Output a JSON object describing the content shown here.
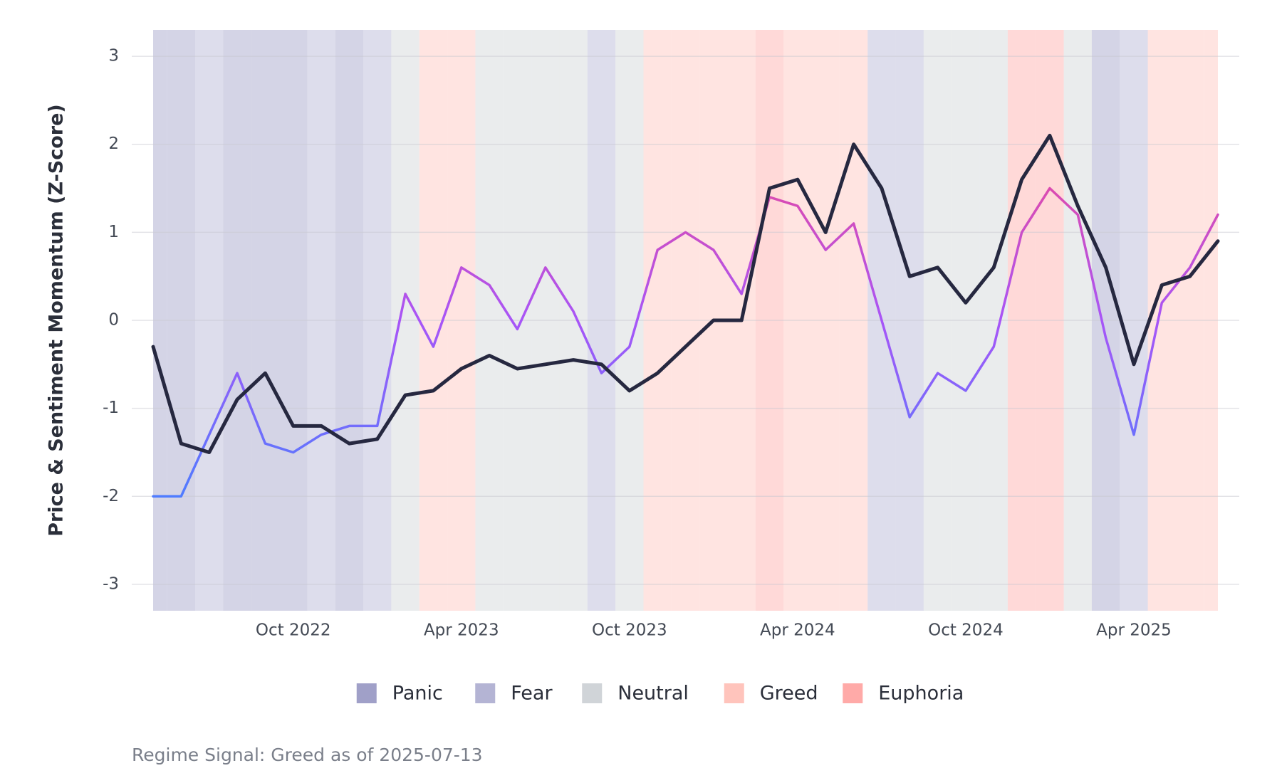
{
  "chart_data": {
    "type": "line",
    "y_label": "Price & Sentiment Momentum (Z-Score)",
    "x": [
      "2022-05",
      "2022-06",
      "2022-07",
      "2022-08",
      "2022-09",
      "2022-10",
      "2022-11",
      "2022-12",
      "2023-01",
      "2023-02",
      "2023-03",
      "2023-04",
      "2023-05",
      "2023-06",
      "2023-07",
      "2023-08",
      "2023-09",
      "2023-10",
      "2023-11",
      "2023-12",
      "2024-01",
      "2024-02",
      "2024-03",
      "2024-04",
      "2024-05",
      "2024-06",
      "2024-07",
      "2024-08",
      "2024-09",
      "2024-10",
      "2024-11",
      "2024-12",
      "2025-01",
      "2025-02",
      "2025-03",
      "2025-04",
      "2025-05",
      "2025-06",
      "2025-07"
    ],
    "xlim": [
      "2022-05",
      "2025-07"
    ],
    "xticks": [
      {
        "value": "2022-10",
        "label": "Oct 2022"
      },
      {
        "value": "2023-04",
        "label": "Apr 2023"
      },
      {
        "value": "2023-10",
        "label": "Oct 2023"
      },
      {
        "value": "2024-04",
        "label": "Apr 2024"
      },
      {
        "value": "2024-10",
        "label": "Oct 2024"
      },
      {
        "value": "2025-04",
        "label": "Apr 2025"
      }
    ],
    "ylim": [
      -3.3,
      3.3
    ],
    "yticks": [
      -3,
      -2,
      -1,
      0,
      1,
      2,
      3
    ],
    "grid": true,
    "series": [
      {
        "color_scale": [
          "#4f7cff",
          "#a855f7",
          "#ec4899"
        ],
        "values": [
          -2.0,
          -2.0,
          -1.3,
          -0.6,
          -1.4,
          -1.5,
          -1.3,
          -1.2,
          -1.2,
          0.3,
          -0.3,
          0.6,
          0.4,
          -0.1,
          0.6,
          0.1,
          -0.6,
          -0.3,
          0.8,
          1.0,
          0.8,
          0.3,
          1.4,
          1.3,
          0.8,
          1.1,
          0.0,
          -1.1,
          -0.6,
          -0.8,
          -0.3,
          1.0,
          1.5,
          1.2,
          -0.2,
          -1.3,
          0.2,
          0.6,
          1.2
        ]
      },
      {
        "color": "#262840",
        "values": [
          -0.3,
          -1.4,
          -1.5,
          -0.9,
          -0.6,
          -1.2,
          -1.2,
          -1.4,
          -1.35,
          -0.85,
          -0.8,
          -0.55,
          -0.4,
          -0.55,
          -0.5,
          -0.45,
          -0.5,
          -0.8,
          -0.6,
          -0.3,
          0.0,
          0.0,
          1.5,
          1.6,
          1.0,
          2.0,
          1.5,
          0.5,
          0.6,
          0.2,
          0.6,
          1.6,
          2.1,
          1.3,
          0.6,
          -0.5,
          0.4,
          0.5,
          0.9
        ]
      }
    ],
    "regimes": [
      "Panic",
      "Panic",
      "Fear",
      "Panic",
      "Panic",
      "Panic",
      "Fear",
      "Panic",
      "Fear",
      "Neutral",
      "Greed",
      "Greed",
      "Neutral",
      "Neutral",
      "Neutral",
      "Neutral",
      "Fear",
      "Neutral",
      "Greed",
      "Greed",
      "Greed",
      "Greed",
      "Euphoria",
      "Greed",
      "Greed",
      "Greed",
      "Fear",
      "Fear",
      "Neutral",
      "Neutral",
      "Neutral",
      "Euphoria",
      "Euphoria",
      "Neutral",
      "Panic",
      "Fear",
      "Greed",
      "Greed",
      "Greed"
    ],
    "legend": [
      {
        "name": "Panic",
        "color": "#a0a0c8"
      },
      {
        "name": "Fear",
        "color": "#b4b4d4"
      },
      {
        "name": "Neutral",
        "color": "#d0d4d8"
      },
      {
        "name": "Greed",
        "color": "#ffc4bc"
      },
      {
        "name": "Euphoria",
        "color": "#ffaaa8"
      }
    ],
    "note": "Regime Signal: Greed as of 2025-07-13"
  }
}
